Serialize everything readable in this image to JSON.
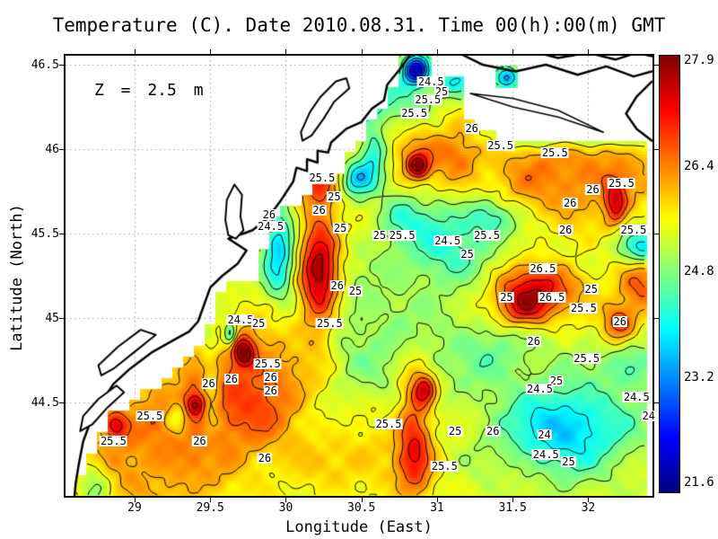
{
  "title": {
    "text": "Temperature (C). Date 2010.08.31. Time 00(h):00(m) GMT"
  },
  "annotation": {
    "text": "Z = 2.5 m"
  },
  "axes": {
    "x": {
      "label": "Longitude (East)",
      "min": 28.543,
      "max": 32.425,
      "tick_values": [
        29,
        29.5,
        30,
        30.5,
        31,
        31.5,
        32
      ],
      "ticks": [
        "29",
        "29.5",
        "30",
        "30.5",
        "31",
        "31.5",
        "32"
      ]
    },
    "y": {
      "label": "Latitude (North)",
      "min": 43.947,
      "max": 46.553,
      "tick_values": [
        46.5,
        46,
        45.5,
        45,
        44.5
      ],
      "ticks": [
        "46.5",
        "46",
        "45.5",
        "45",
        "44.5"
      ]
    }
  },
  "colorbar": {
    "min": 21.6,
    "max": 27.9,
    "colormap": "jet",
    "labels": [
      "27.9",
      "26.4",
      "24.8",
      "23.2",
      "21.6"
    ]
  },
  "colors": {
    "background": "#ffffff",
    "frame": "#000000",
    "grid": "#999999",
    "contour": "#000000",
    "coast": "#000000",
    "land": "#ffffff"
  },
  "chart_data": {
    "type": "heatmap",
    "title": "Temperature (C). Date 2010.08.31. Time 00(h):00(m) GMT",
    "units": "C",
    "xlabel": "Longitude (East)",
    "ylabel": "Latitude (North)",
    "xlim": [
      28.543,
      32.425
    ],
    "ylim": [
      43.947,
      46.553
    ],
    "value_range": [
      21.6,
      27.9
    ],
    "contour_levels": [
      22.5,
      23,
      23.5,
      24,
      24.5,
      25,
      25.5,
      26,
      26.5,
      27,
      27.5
    ],
    "field": {
      "base": 25.3,
      "bumps": [
        [
          29.1,
          44.2,
          0.45,
          0.3,
          0.9
        ],
        [
          29.55,
          44.55,
          0.3,
          0.25,
          0.8
        ],
        [
          29.72,
          44.8,
          0.05,
          0.06,
          2.0
        ],
        [
          29.9,
          44.62,
          0.22,
          0.28,
          0.8
        ],
        [
          30.22,
          45.28,
          0.09,
          0.26,
          2.3
        ],
        [
          30.22,
          45.8,
          0.09,
          0.1,
          1.1
        ],
        [
          30.87,
          45.9,
          0.05,
          0.05,
          1.9
        ],
        [
          30.9,
          46.0,
          0.15,
          0.12,
          0.9
        ],
        [
          31.9,
          45.85,
          0.45,
          0.2,
          1.1
        ],
        [
          32.18,
          45.68,
          0.05,
          0.09,
          1.5
        ],
        [
          32.35,
          45.18,
          0.1,
          0.12,
          1.2
        ],
        [
          31.68,
          45.18,
          0.22,
          0.1,
          1.7
        ],
        [
          31.58,
          45.05,
          0.12,
          0.08,
          1.6
        ],
        [
          32.2,
          44.97,
          0.08,
          0.08,
          1.5
        ],
        [
          30.85,
          44.3,
          0.08,
          0.28,
          1.5
        ],
        [
          30.92,
          44.58,
          0.05,
          0.06,
          1.6
        ],
        [
          29.4,
          44.49,
          0.05,
          0.05,
          1.5
        ],
        [
          28.87,
          44.37,
          0.06,
          0.06,
          1.3
        ],
        [
          31.15,
          45.95,
          0.1,
          0.15,
          0.7
        ],
        [
          30.55,
          44.15,
          0.3,
          0.15,
          0.6
        ],
        [
          30.86,
          46.47,
          0.06,
          0.06,
          -3.4
        ],
        [
          30.7,
          46.3,
          0.18,
          0.1,
          -0.9
        ],
        [
          31.12,
          46.4,
          0.1,
          0.06,
          -1.2
        ],
        [
          29.95,
          45.4,
          0.07,
          0.2,
          -1.6
        ],
        [
          30.47,
          45.82,
          0.07,
          0.07,
          -1.5
        ],
        [
          30.58,
          45.97,
          0.06,
          0.12,
          -1.2
        ],
        [
          30.42,
          46.25,
          0.1,
          0.1,
          -1.0
        ],
        [
          31.05,
          45.45,
          0.22,
          0.18,
          -1.1
        ],
        [
          30.75,
          45.6,
          0.1,
          0.08,
          -0.7
        ],
        [
          31.35,
          45.6,
          0.12,
          0.08,
          -1.0
        ],
        [
          32.36,
          45.42,
          0.1,
          0.07,
          -1.6
        ],
        [
          31.85,
          44.35,
          0.3,
          0.18,
          -1.7
        ],
        [
          32.3,
          44.72,
          0.15,
          0.1,
          -0.8
        ],
        [
          30.55,
          44.9,
          0.3,
          0.25,
          -0.5
        ],
        [
          31.35,
          44.8,
          0.25,
          0.15,
          -0.6
        ],
        [
          28.73,
          44.03,
          0.08,
          0.1,
          -0.9
        ],
        [
          29.5,
          44.6,
          0.05,
          0.2,
          -0.8
        ],
        [
          31.46,
          46.42,
          0.06,
          0.05,
          -2.0
        ],
        [
          31.9,
          46.08,
          0.4,
          0.05,
          -1.0
        ],
        [
          29.63,
          44.9,
          0.03,
          0.05,
          -1.5
        ],
        [
          29.28,
          44.42,
          0.06,
          0.08,
          -0.9
        ]
      ],
      "ripples": [
        [
          0.15,
          9.0,
          11.0,
          0.0
        ],
        [
          0.12,
          14.5,
          17.0,
          2.1
        ],
        [
          0.09,
          23.0,
          27.0,
          4.2
        ],
        [
          0.07,
          37.0,
          41.0,
          1.1
        ]
      ]
    },
    "contour_labels": [
      [
        30.96,
        46.4,
        "24.5"
      ],
      [
        31.03,
        46.34,
        "25"
      ],
      [
        30.94,
        46.29,
        "25.5"
      ],
      [
        30.85,
        46.21,
        "25.5"
      ],
      [
        31.23,
        46.12,
        "26"
      ],
      [
        31.42,
        46.02,
        "25.5"
      ],
      [
        31.78,
        45.98,
        "25.5"
      ],
      [
        32.03,
        45.76,
        "26"
      ],
      [
        32.22,
        45.8,
        "25.5"
      ],
      [
        31.88,
        45.68,
        "26"
      ],
      [
        31.85,
        45.52,
        "26"
      ],
      [
        30.24,
        45.83,
        "25.5"
      ],
      [
        30.32,
        45.72,
        "25"
      ],
      [
        30.22,
        45.64,
        "26"
      ],
      [
        30.36,
        45.53,
        "25"
      ],
      [
        29.9,
        45.54,
        "24.5"
      ],
      [
        29.89,
        45.61,
        "26"
      ],
      [
        30.77,
        45.49,
        "25.5"
      ],
      [
        30.62,
        45.49,
        "25"
      ],
      [
        31.07,
        45.46,
        "24.5"
      ],
      [
        31.33,
        45.49,
        "25.5"
      ],
      [
        31.2,
        45.38,
        "25"
      ],
      [
        32.3,
        45.52,
        "25.5"
      ],
      [
        31.7,
        45.29,
        "26.5"
      ],
      [
        30.34,
        45.19,
        "26"
      ],
      [
        30.46,
        45.16,
        "25"
      ],
      [
        32.02,
        45.17,
        "25"
      ],
      [
        31.76,
        45.12,
        "26.5"
      ],
      [
        31.46,
        45.12,
        "25"
      ],
      [
        31.97,
        45.06,
        "25.5"
      ],
      [
        32.21,
        44.98,
        "26"
      ],
      [
        31.64,
        44.86,
        "26"
      ],
      [
        31.99,
        44.76,
        "25.5"
      ],
      [
        29.7,
        44.99,
        "24.5"
      ],
      [
        29.82,
        44.97,
        "25"
      ],
      [
        30.29,
        44.97,
        "25.5"
      ],
      [
        29.88,
        44.73,
        "25.5"
      ],
      [
        29.9,
        44.65,
        "26"
      ],
      [
        29.9,
        44.57,
        "26"
      ],
      [
        29.64,
        44.64,
        "26"
      ],
      [
        29.49,
        44.61,
        "26"
      ],
      [
        29.1,
        44.42,
        "25.5"
      ],
      [
        28.86,
        44.27,
        "25.5"
      ],
      [
        29.43,
        44.27,
        "26"
      ],
      [
        29.86,
        44.17,
        "26"
      ],
      [
        30.68,
        44.37,
        "25.5"
      ],
      [
        31.37,
        44.33,
        "26"
      ],
      [
        31.12,
        44.33,
        "25"
      ],
      [
        31.05,
        44.12,
        "25.5"
      ],
      [
        31.79,
        44.63,
        "25"
      ],
      [
        31.68,
        44.58,
        "24.5"
      ],
      [
        32.32,
        44.53,
        "24.5"
      ],
      [
        32.4,
        44.42,
        "24"
      ],
      [
        31.71,
        44.31,
        "24"
      ],
      [
        31.72,
        44.19,
        "24.5"
      ],
      [
        31.87,
        44.15,
        "25"
      ]
    ],
    "sea_polygons": [
      [
        [
          28.6,
          43.94
        ],
        [
          28.6,
          44.02
        ],
        [
          28.7,
          44.06
        ],
        [
          28.7,
          44.2
        ],
        [
          28.79,
          44.26
        ],
        [
          28.8,
          44.4
        ],
        [
          28.94,
          44.46
        ],
        [
          29.08,
          44.55
        ],
        [
          29.22,
          44.64
        ],
        [
          29.36,
          44.75
        ],
        [
          29.47,
          44.84
        ],
        [
          29.51,
          44.95
        ],
        [
          29.52,
          45.1
        ],
        [
          29.6,
          45.15
        ],
        [
          29.7,
          45.22
        ],
        [
          29.83,
          45.25
        ],
        [
          29.86,
          45.4
        ],
        [
          29.88,
          45.55
        ],
        [
          29.98,
          45.62
        ],
        [
          30.12,
          45.7
        ],
        [
          30.25,
          45.8
        ],
        [
          30.38,
          45.86
        ],
        [
          30.43,
          45.95
        ],
        [
          30.5,
          46.02
        ],
        [
          30.55,
          46.12
        ],
        [
          30.62,
          46.2
        ],
        [
          30.68,
          46.28
        ],
        [
          30.72,
          46.38
        ],
        [
          30.76,
          46.45
        ],
        [
          30.78,
          46.55
        ],
        [
          30.97,
          46.55
        ],
        [
          30.99,
          46.44
        ],
        [
          31.15,
          46.44
        ],
        [
          31.16,
          46.3
        ],
        [
          31.2,
          46.15
        ],
        [
          31.32,
          46.12
        ],
        [
          31.45,
          46.05
        ],
        [
          32.42,
          46.05
        ],
        [
          32.42,
          43.94
        ]
      ],
      [
        [
          31.4,
          46.38
        ],
        [
          31.4,
          46.47
        ],
        [
          31.53,
          46.47
        ],
        [
          31.53,
          46.38
        ]
      ]
    ],
    "coastlines": [
      {
        "name": "mainland-coast",
        "closed": false,
        "width": 2.5,
        "points": [
          [
            30.84,
            46.58
          ],
          [
            30.76,
            46.48
          ],
          [
            30.67,
            46.38
          ],
          [
            30.65,
            46.29
          ],
          [
            30.57,
            46.24
          ],
          [
            30.5,
            46.16
          ],
          [
            30.4,
            46.12
          ],
          [
            30.3,
            46.04
          ],
          [
            30.28,
            45.98
          ],
          [
            30.21,
            45.99
          ],
          [
            30.21,
            45.92
          ],
          [
            30.14,
            45.94
          ],
          [
            30.14,
            45.87
          ],
          [
            30.07,
            45.89
          ],
          [
            30.05,
            45.81
          ],
          [
            29.97,
            45.7
          ],
          [
            29.88,
            45.59
          ],
          [
            29.78,
            45.52
          ],
          [
            29.72,
            45.5
          ],
          [
            29.62,
            45.47
          ],
          [
            29.74,
            45.4
          ],
          [
            29.68,
            45.32
          ],
          [
            29.58,
            45.25
          ],
          [
            29.5,
            45.18
          ],
          [
            29.46,
            45.08
          ],
          [
            29.42,
            44.98
          ],
          [
            29.36,
            44.92
          ],
          [
            29.26,
            44.87
          ],
          [
            29.12,
            44.8
          ],
          [
            28.97,
            44.7
          ],
          [
            28.86,
            44.61
          ],
          [
            28.78,
            44.5
          ],
          [
            28.71,
            44.39
          ],
          [
            28.66,
            44.27
          ],
          [
            28.63,
            44.13
          ],
          [
            28.61,
            44.02
          ],
          [
            28.6,
            43.92
          ]
        ]
      },
      {
        "name": "dniester-liman",
        "closed": true,
        "width": 2,
        "points": [
          [
            29.62,
            45.49
          ],
          [
            29.6,
            45.58
          ],
          [
            29.61,
            45.7
          ],
          [
            29.66,
            45.79
          ],
          [
            29.71,
            45.73
          ],
          [
            29.7,
            45.6
          ],
          [
            29.72,
            45.52
          ],
          [
            29.67,
            45.47
          ]
        ]
      },
      {
        "name": "berezan-estuary",
        "closed": true,
        "width": 2,
        "points": [
          [
            30.1,
            46.1
          ],
          [
            30.16,
            46.22
          ],
          [
            30.23,
            46.31
          ],
          [
            30.33,
            46.4
          ],
          [
            30.4,
            46.42
          ],
          [
            30.42,
            46.36
          ],
          [
            30.32,
            46.28
          ],
          [
            30.25,
            46.18
          ],
          [
            30.17,
            46.08
          ],
          [
            30.11,
            46.05
          ]
        ]
      },
      {
        "name": "delta-lagoon-north",
        "closed": true,
        "width": 2,
        "points": [
          [
            28.76,
            44.72
          ],
          [
            28.89,
            44.83
          ],
          [
            29.04,
            44.93
          ],
          [
            29.14,
            44.9
          ],
          [
            29.0,
            44.8
          ],
          [
            28.86,
            44.7
          ],
          [
            28.78,
            44.66
          ]
        ]
      },
      {
        "name": "delta-lagoon-south",
        "closed": true,
        "width": 2,
        "points": [
          [
            28.66,
            44.42
          ],
          [
            28.76,
            44.52
          ],
          [
            28.88,
            44.6
          ],
          [
            28.93,
            44.56
          ],
          [
            28.82,
            44.47
          ],
          [
            28.72,
            44.37
          ],
          [
            28.64,
            44.33
          ]
        ]
      },
      {
        "name": "spit-upper",
        "closed": false,
        "width": 2.5,
        "points": [
          [
            31.12,
            46.58
          ],
          [
            31.3,
            46.5
          ],
          [
            31.52,
            46.46
          ],
          [
            31.72,
            46.5
          ],
          [
            31.93,
            46.44
          ],
          [
            32.12,
            46.49
          ],
          [
            32.3,
            46.43
          ],
          [
            32.42,
            46.46
          ]
        ]
      },
      {
        "name": "spit-upper-2",
        "closed": false,
        "width": 2.5,
        "points": [
          [
            31.62,
            46.58
          ],
          [
            31.8,
            46.54
          ],
          [
            32.0,
            46.57
          ],
          [
            32.18,
            46.53
          ],
          [
            32.32,
            46.57
          ],
          [
            32.42,
            46.55
          ]
        ]
      },
      {
        "name": "tendra-spit",
        "closed": true,
        "width": 1.5,
        "points": [
          [
            31.22,
            46.33
          ],
          [
            31.5,
            46.25
          ],
          [
            31.8,
            46.19
          ],
          [
            32.1,
            46.1
          ],
          [
            31.8,
            46.23
          ],
          [
            31.5,
            46.3
          ]
        ]
      },
      {
        "name": "east-coast-hook",
        "closed": false,
        "width": 2.5,
        "points": [
          [
            32.42,
            46.4
          ],
          [
            32.32,
            46.31
          ],
          [
            32.25,
            46.21
          ],
          [
            32.32,
            46.12
          ],
          [
            32.42,
            46.05
          ]
        ]
      }
    ]
  }
}
